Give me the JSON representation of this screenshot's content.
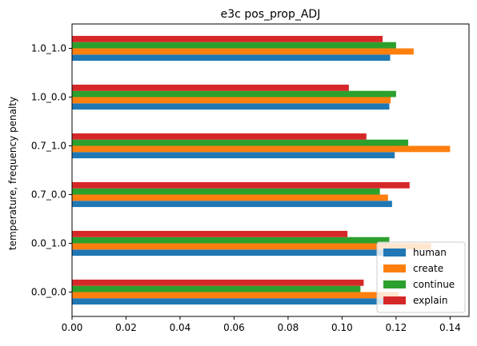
{
  "chart_data": {
    "type": "bar",
    "orientation": "horizontal",
    "title": "e3c pos_prop_ADJ",
    "xlabel": "",
    "ylabel": "temperature, frequency penalty",
    "categories": [
      "0.0_0.0",
      "0.0_1.0",
      "0.7_0.0",
      "0.7_1.0",
      "1.0_0.0",
      "1.0_1.0"
    ],
    "xlim": [
      0,
      0.147
    ],
    "xticks": [
      "0.00",
      "0.02",
      "0.04",
      "0.06",
      "0.08",
      "0.10",
      "0.12",
      "0.14"
    ],
    "grid": false,
    "legend_position": "lower-right",
    "series": [
      {
        "name": "human",
        "color": "#1f77b4",
        "values": [
          0.121,
          0.122,
          0.1185,
          0.1195,
          0.1175,
          0.1178
        ]
      },
      {
        "name": "create",
        "color": "#ff7f0e",
        "values": [
          0.121,
          0.133,
          0.117,
          0.14,
          0.118,
          0.1265
        ]
      },
      {
        "name": "continue",
        "color": "#2ca02c",
        "values": [
          0.1068,
          0.1175,
          0.114,
          0.1245,
          0.12,
          0.12
        ]
      },
      {
        "name": "explain",
        "color": "#d62728",
        "values": [
          0.108,
          0.102,
          0.125,
          0.109,
          0.1025,
          0.115
        ]
      }
    ]
  }
}
